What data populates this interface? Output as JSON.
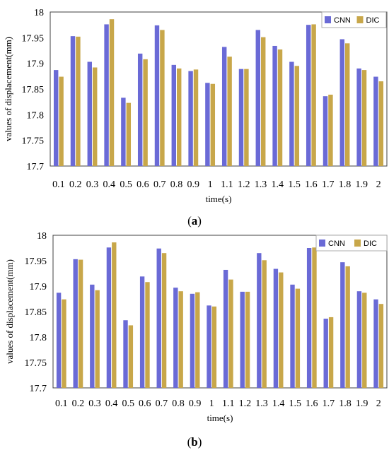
{
  "colors": {
    "CNN": "#6a6ad6",
    "DIC": "#c8a74a",
    "plot_border": "#404040",
    "background": "#ffffff"
  },
  "chart_data": [
    {
      "type": "bar",
      "panel_label": "a",
      "categories": [
        "0.1",
        "0.2",
        "0.3",
        "0.4",
        "0.5",
        "0.6",
        "0.7",
        "0.8",
        "0.9",
        "1",
        "1.1",
        "1.2",
        "1.3",
        "1.4",
        "1.5",
        "1.6",
        "1.7",
        "1.8",
        "1.9",
        "2"
      ],
      "series": [
        {
          "name": "CNN",
          "values": [
            17.887,
            17.953,
            17.903,
            17.976,
            17.833,
            17.919,
            17.974,
            17.897,
            17.885,
            17.862,
            17.932,
            17.889,
            17.965,
            17.934,
            17.903,
            17.975,
            17.836,
            17.947,
            17.89,
            17.874
          ]
        },
        {
          "name": "DIC",
          "values": [
            17.874,
            17.952,
            17.892,
            17.986,
            17.823,
            17.908,
            17.965,
            17.89,
            17.888,
            17.86,
            17.913,
            17.889,
            17.951,
            17.927,
            17.895,
            17.976,
            17.839,
            17.939,
            17.887,
            17.865
          ]
        }
      ],
      "xlabel": "time(s)",
      "ylabel": "values of displacement(mm)",
      "ylim": [
        17.7,
        18
      ],
      "yticks": [
        "17.7",
        "17.75",
        "17.8",
        "17.85",
        "17.9",
        "17.95",
        "18"
      ],
      "legend": "top-right",
      "grid": false
    },
    {
      "type": "bar",
      "panel_label": "b",
      "categories": [
        "0.1",
        "0.2",
        "0.3",
        "0.4",
        "0.5",
        "0.6",
        "0.7",
        "0.8",
        "0.9",
        "1",
        "1.1",
        "1.2",
        "1.3",
        "1.4",
        "1.5",
        "1.6",
        "1.7",
        "1.8",
        "1.9",
        "2"
      ],
      "series": [
        {
          "name": "CNN",
          "values": [
            17.887,
            17.953,
            17.903,
            17.976,
            17.833,
            17.919,
            17.974,
            17.897,
            17.885,
            17.862,
            17.932,
            17.889,
            17.965,
            17.934,
            17.903,
            17.975,
            17.836,
            17.947,
            17.89,
            17.874
          ]
        },
        {
          "name": "DIC",
          "values": [
            17.874,
            17.952,
            17.892,
            17.986,
            17.823,
            17.908,
            17.965,
            17.89,
            17.888,
            17.86,
            17.913,
            17.889,
            17.951,
            17.927,
            17.895,
            17.976,
            17.839,
            17.939,
            17.887,
            17.865
          ]
        }
      ],
      "xlabel": "time(s)",
      "ylabel": "values of displacement(mm)",
      "ylim": [
        17.7,
        18
      ],
      "yticks": [
        "17.7",
        "17.75",
        "17.8",
        "17.85",
        "17.9",
        "17.95",
        "18"
      ],
      "legend": "top-right",
      "grid": false
    }
  ]
}
